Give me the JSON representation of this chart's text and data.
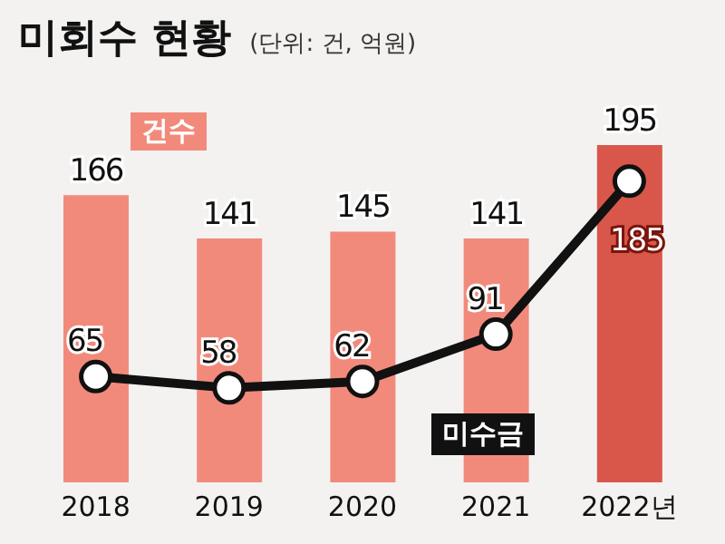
{
  "chart_data": {
    "type": "bar",
    "title": "미회수 현황",
    "subtitle": "(단위: 건, 억원)",
    "categories": [
      "2018",
      "2019",
      "2020",
      "2021",
      "2022년"
    ],
    "series": [
      {
        "name": "건수",
        "colors": [
          "#f28a7c",
          "#f28a7c",
          "#f28a7c",
          "#f28a7c",
          "#d9574a"
        ],
        "values": [
          166,
          141,
          145,
          141,
          195
        ]
      },
      {
        "name": "미수금",
        "type": "line",
        "axis": "y2",
        "color": "#111111",
        "marker": "circle",
        "values": [
          65,
          58,
          62,
          91,
          185
        ]
      }
    ],
    "data_labels": true
  }
}
